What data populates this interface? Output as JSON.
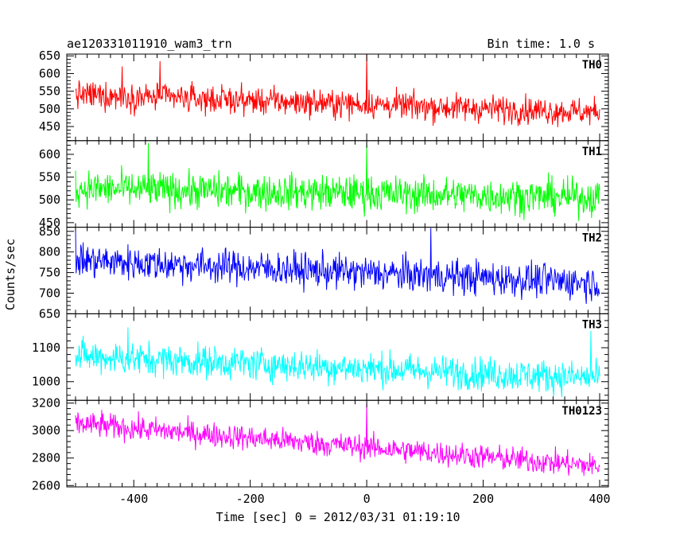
{
  "header": {
    "title": "ae120331011910_wam3_trn",
    "bin_time": "Bin time: 1.0 s"
  },
  "chart_data": [
    {
      "type": "line",
      "panel": "TH0",
      "label": "TH0",
      "color": "#ff0000",
      "ylim": [
        410,
        655
      ],
      "yticks": [
        450,
        500,
        550,
        600,
        650
      ],
      "mean_start": 540,
      "mean_end": 490,
      "noise": 28,
      "spikes": [
        {
          "x": 0,
          "y": 655
        },
        {
          "x": -355,
          "y": 635
        },
        {
          "x": -420,
          "y": 620
        }
      ]
    },
    {
      "type": "line",
      "panel": "TH1",
      "label": "TH1",
      "color": "#00ff00",
      "ylim": [
        440,
        630
      ],
      "yticks": [
        450,
        500,
        550,
        600
      ],
      "mean_start": 525,
      "mean_end": 505,
      "noise": 28,
      "spikes": [
        {
          "x": 0,
          "y": 625
        },
        {
          "x": -375,
          "y": 625
        }
      ]
    },
    {
      "type": "line",
      "panel": "TH2",
      "label": "TH2",
      "color": "#0000ff",
      "ylim": [
        650,
        860
      ],
      "yticks": [
        650,
        700,
        750,
        800,
        850
      ],
      "mean_start": 780,
      "mean_end": 725,
      "noise": 30,
      "spikes": [
        {
          "x": -500,
          "y": 858
        },
        {
          "x": 110,
          "y": 858
        }
      ]
    },
    {
      "type": "line",
      "panel": "TH3",
      "label": "TH3",
      "color": "#00ffff",
      "ylim": [
        945,
        1200
      ],
      "yticks": [
        1000,
        1100
      ],
      "mean_start": 1075,
      "mean_end": 1010,
      "noise": 35,
      "spikes": [
        {
          "x": 385,
          "y": 1150
        },
        {
          "x": -410,
          "y": 1160
        }
      ]
    },
    {
      "type": "line",
      "panel": "TH0123",
      "label": "TH0123",
      "color": "#ff00ff",
      "ylim": [
        2590,
        3220
      ],
      "yticks": [
        2600,
        2800,
        3000,
        3200
      ],
      "mean_start": 3050,
      "mean_end": 2740,
      "noise": 65,
      "spikes": [
        {
          "x": 0,
          "y": 3200
        },
        {
          "x": -455,
          "y": 3150
        }
      ]
    }
  ],
  "x_axis": {
    "xlim": [
      -515,
      415
    ],
    "xticks": [
      -400,
      -200,
      0,
      200,
      400
    ],
    "label": "Time [sec] 0 = 2012/03/31 01:19:10",
    "data_start": -500,
    "data_end": 400
  },
  "y_axis": {
    "label": "Counts/sec"
  }
}
